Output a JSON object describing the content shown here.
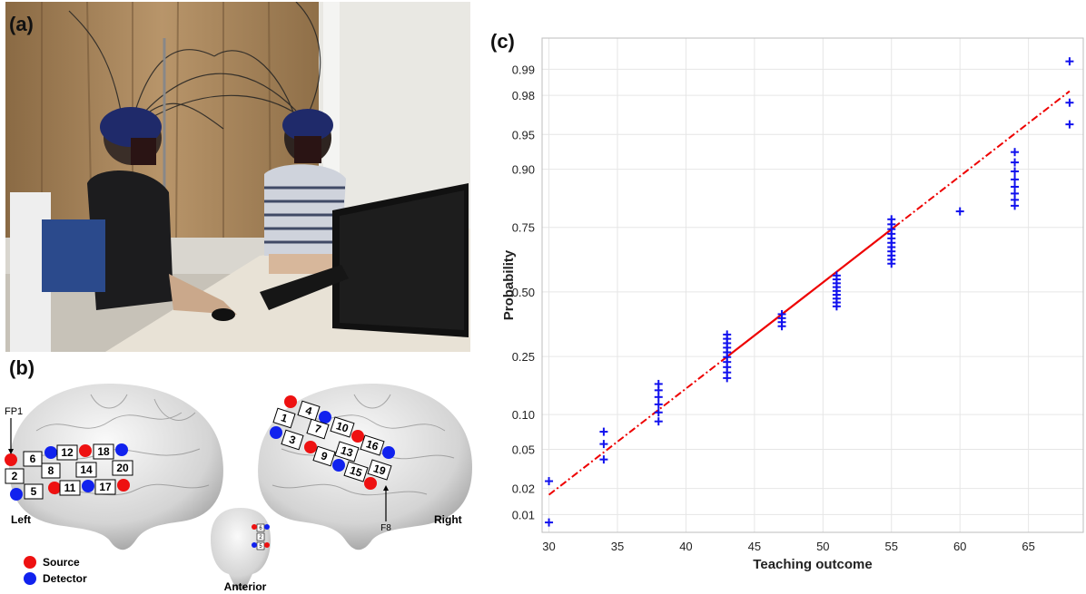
{
  "panels": {
    "a": "(a)",
    "b": "(b)",
    "c": "(c)"
  },
  "brain": {
    "left_channels": [
      "6",
      "12",
      "18",
      "2",
      "8",
      "14",
      "20",
      "5",
      "11",
      "17"
    ],
    "right_channels": [
      "4",
      "1",
      "10",
      "7",
      "3",
      "16",
      "13",
      "9",
      "19",
      "15"
    ],
    "front_channels": [
      "6",
      "2",
      "5"
    ],
    "label_fp1": "FP1",
    "label_f8": "F8",
    "label_left": "Left",
    "label_right": "Right",
    "label_anterior": "Anterior",
    "legend_source": "Source",
    "legend_detector": "Detector",
    "source_color": "#ee1111",
    "detector_color": "#1122ee"
  },
  "chart_data": {
    "type": "scatter",
    "title": "",
    "xlabel": "Teaching outcome",
    "ylabel": "Probability",
    "x_ticks": [
      30,
      35,
      40,
      45,
      50,
      55,
      60,
      65
    ],
    "y_ticks": [
      "0.01",
      "0.02",
      "0.05",
      "0.10",
      "0.25",
      "0.50",
      "0.75",
      "0.90",
      "0.95",
      "0.98",
      "0.99"
    ],
    "xlim": [
      29.5,
      69
    ],
    "y_scale": "normal probability",
    "ylim": [
      0.006,
      0.996
    ],
    "grid": true,
    "marker": "+",
    "marker_color": "#1111ee",
    "fit_line_color": "#ee0000",
    "fit_line": {
      "x": [
        30,
        68
      ],
      "y": [
        0.017,
        0.982
      ]
    },
    "points": [
      {
        "x": 30,
        "y": [
          0.008,
          0.024
        ]
      },
      {
        "x": 34,
        "y": [
          0.04,
          0.056,
          0.072
        ]
      },
      {
        "x": 38,
        "y": [
          0.088,
          0.104,
          0.12,
          0.136,
          0.152,
          0.168
        ]
      },
      {
        "x": 43,
        "y": [
          0.184,
          0.2,
          0.216,
          0.232,
          0.248,
          0.264,
          0.28,
          0.296,
          0.312,
          0.328
        ]
      },
      {
        "x": 47,
        "y": [
          0.36,
          0.376,
          0.392,
          0.408
        ]
      },
      {
        "x": 51,
        "y": [
          0.44,
          0.456,
          0.472,
          0.488,
          0.504,
          0.52,
          0.536,
          0.552,
          0.568
        ]
      },
      {
        "x": 55,
        "y": [
          0.616,
          0.632,
          0.648,
          0.664,
          0.68,
          0.696,
          0.712,
          0.728,
          0.744,
          0.76,
          0.776
        ]
      },
      {
        "x": 60,
        "y": [
          0.8
        ]
      },
      {
        "x": 64,
        "y": [
          0.816,
          0.832,
          0.848,
          0.864,
          0.88,
          0.896,
          0.912,
          0.928
        ]
      },
      {
        "x": 68,
        "y": [
          0.96,
          0.976,
          0.992
        ]
      }
    ]
  }
}
